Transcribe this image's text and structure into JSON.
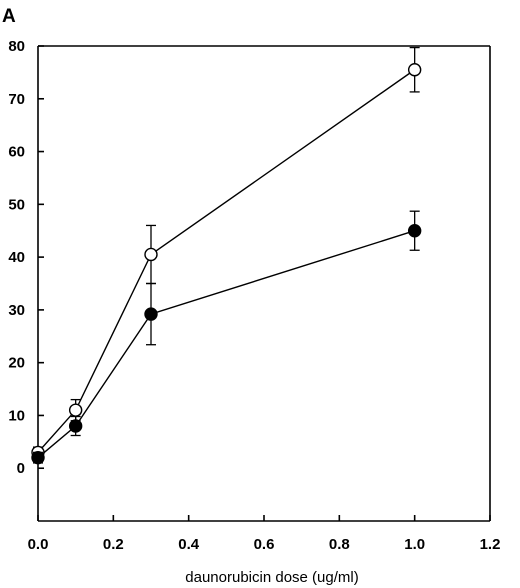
{
  "panel_label": "A",
  "chart_data": {
    "type": "line",
    "title": "",
    "xlabel": "daunorubicin dose (ug/ml)",
    "ylabel": "",
    "xlim": [
      0.0,
      1.2
    ],
    "ylim": [
      -10,
      80
    ],
    "x_ticks": [
      "0.0",
      "0.2",
      "0.4",
      "0.6",
      "0.8",
      "1.0",
      "1.2"
    ],
    "y_ticks": [
      "0",
      "10",
      "20",
      "30",
      "40",
      "50",
      "60",
      "70",
      "80"
    ],
    "grid": false,
    "series": [
      {
        "marker": "open-circle",
        "x": [
          0.0,
          0.1,
          0.3,
          1.0
        ],
        "y": [
          3,
          11,
          40.5,
          75.5
        ],
        "error": [
          1,
          2,
          5.5,
          4.2
        ]
      },
      {
        "marker": "filled-circle",
        "x": [
          0.0,
          0.1,
          0.3,
          1.0
        ],
        "y": [
          2,
          8,
          29.2,
          45
        ],
        "error": [
          1,
          1.8,
          5.8,
          3.7
        ]
      }
    ]
  }
}
